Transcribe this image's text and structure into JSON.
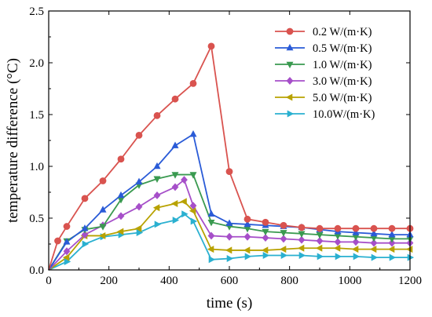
{
  "chart_data": {
    "type": "line",
    "xlabel": "time (s)",
    "ylabel": "temperature difference (°C)",
    "xlim": [
      0,
      1200
    ],
    "ylim": [
      0,
      2.5
    ],
    "xticks": [
      0,
      200,
      400,
      600,
      800,
      1000,
      1200
    ],
    "yticks": [
      0.0,
      0.5,
      1.0,
      1.5,
      2.0,
      2.5
    ],
    "xtick_labels": [
      "0",
      "200",
      "400",
      "600",
      "800",
      "1000",
      "1200"
    ],
    "ytick_labels": [
      "0.0",
      "0.5",
      "1.0",
      "1.5",
      "2.0",
      "2.5"
    ],
    "grid": false,
    "legend_position": "top-right",
    "series": [
      {
        "name": "0.2 W/(m·K)",
        "color": "#d9534f",
        "marker": "circle",
        "x": [
          0,
          30,
          60,
          120,
          180,
          240,
          300,
          360,
          420,
          480,
          540,
          600,
          660,
          720,
          780,
          840,
          900,
          960,
          1020,
          1080,
          1140,
          1200
        ],
        "y": [
          0,
          0.28,
          0.42,
          0.69,
          0.86,
          1.07,
          1.3,
          1.49,
          1.65,
          1.8,
          2.16,
          0.95,
          0.49,
          0.46,
          0.43,
          0.41,
          0.4,
          0.4,
          0.4,
          0.4,
          0.4,
          0.4
        ]
      },
      {
        "name": "0.5 W/(m·K)",
        "color": "#2a5bd7",
        "marker": "triangle-up",
        "x": [
          0,
          60,
          120,
          180,
          240,
          300,
          360,
          420,
          480,
          540,
          600,
          660,
          720,
          780,
          840,
          900,
          960,
          1020,
          1080,
          1140,
          1200
        ],
        "y": [
          0,
          0.27,
          0.4,
          0.58,
          0.72,
          0.85,
          1.0,
          1.2,
          1.31,
          0.54,
          0.45,
          0.44,
          0.43,
          0.42,
          0.41,
          0.39,
          0.37,
          0.36,
          0.35,
          0.34,
          0.34
        ]
      },
      {
        "name": "1.0 W/(m·K)",
        "color": "#3a9a50",
        "marker": "triangle-down",
        "x": [
          0,
          60,
          120,
          180,
          240,
          300,
          360,
          420,
          480,
          540,
          600,
          660,
          720,
          780,
          840,
          900,
          960,
          1020,
          1080,
          1140,
          1200
        ],
        "y": [
          0,
          0.28,
          0.39,
          0.42,
          0.68,
          0.82,
          0.88,
          0.92,
          0.92,
          0.46,
          0.42,
          0.4,
          0.37,
          0.36,
          0.35,
          0.34,
          0.33,
          0.32,
          0.31,
          0.3,
          0.3
        ]
      },
      {
        "name": "3.0 W/(m·K)",
        "color": "#a64fc9",
        "marker": "diamond",
        "x": [
          0,
          60,
          120,
          180,
          240,
          300,
          360,
          420,
          450,
          480,
          540,
          600,
          660,
          720,
          780,
          840,
          900,
          960,
          1020,
          1080,
          1140,
          1200
        ],
        "y": [
          0,
          0.18,
          0.34,
          0.43,
          0.52,
          0.61,
          0.72,
          0.8,
          0.87,
          0.62,
          0.33,
          0.32,
          0.32,
          0.31,
          0.3,
          0.29,
          0.28,
          0.27,
          0.27,
          0.26,
          0.26,
          0.26
        ]
      },
      {
        "name": "5.0 W/(m·K)",
        "color": "#b8a200",
        "marker": "triangle-left",
        "x": [
          0,
          60,
          120,
          180,
          240,
          300,
          360,
          420,
          450,
          480,
          540,
          600,
          660,
          720,
          780,
          840,
          900,
          960,
          1020,
          1080,
          1140,
          1200
        ],
        "y": [
          0,
          0.12,
          0.33,
          0.33,
          0.37,
          0.4,
          0.6,
          0.64,
          0.66,
          0.57,
          0.2,
          0.19,
          0.19,
          0.19,
          0.2,
          0.21,
          0.21,
          0.21,
          0.2,
          0.2,
          0.2,
          0.2
        ]
      },
      {
        "name": "10.0W/(m·K)",
        "color": "#2ab0d0",
        "marker": "triangle-right",
        "x": [
          0,
          60,
          120,
          180,
          240,
          300,
          360,
          420,
          450,
          480,
          540,
          600,
          660,
          720,
          780,
          840,
          900,
          960,
          1020,
          1080,
          1140,
          1200
        ],
        "y": [
          0,
          0.08,
          0.25,
          0.32,
          0.34,
          0.36,
          0.44,
          0.48,
          0.54,
          0.47,
          0.1,
          0.11,
          0.13,
          0.14,
          0.14,
          0.14,
          0.13,
          0.13,
          0.13,
          0.12,
          0.12,
          0.12
        ]
      }
    ]
  }
}
